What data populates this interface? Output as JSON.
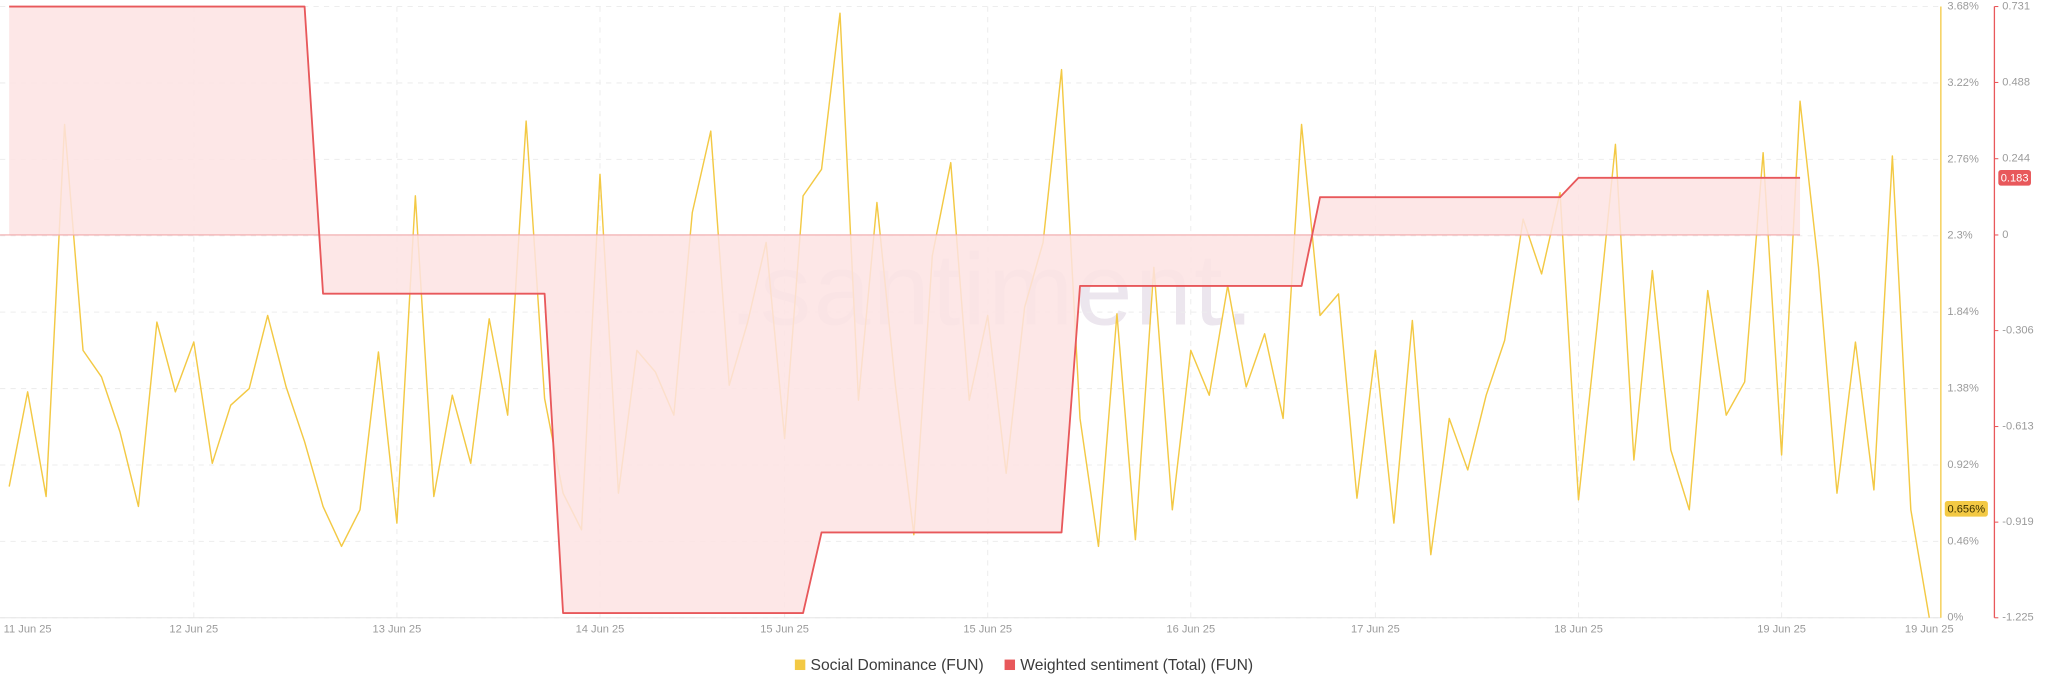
{
  "chart_data": {
    "type": "line",
    "watermark": ".santiment.",
    "categories": [
      null,
      "11 Jun 25",
      null,
      null,
      null,
      null,
      null,
      null,
      null,
      null,
      "12 Jun 25",
      null,
      null,
      null,
      null,
      null,
      null,
      null,
      null,
      null,
      null,
      "13 Jun 25",
      null,
      null,
      null,
      null,
      null,
      null,
      null,
      null,
      null,
      null,
      "14 Jun 25",
      null,
      null,
      null,
      null,
      null,
      null,
      null,
      null,
      null,
      "15 Jun 25",
      null,
      null,
      null,
      null,
      null,
      null,
      null,
      null,
      null,
      null,
      "15 Jun 25",
      null,
      null,
      null,
      null,
      null,
      null,
      null,
      null,
      null,
      null,
      "16 Jun 25",
      null,
      null,
      null,
      null,
      null,
      null,
      null,
      null,
      null,
      "17 Jun 25",
      null,
      null,
      null,
      null,
      null,
      null,
      null,
      null,
      null,
      null,
      "18 Jun 25",
      null,
      null,
      null,
      null,
      null,
      null,
      null,
      null,
      null,
      null,
      "19 Jun 25",
      null,
      null,
      null,
      null,
      null,
      null,
      null,
      "19 Jun 25"
    ],
    "series": [
      {
        "name": "Social Dominance (FUN)",
        "color": "#f3c944",
        "values": [
          0.79,
          1.36,
          0.73,
          2.97,
          1.61,
          1.45,
          1.12,
          0.67,
          1.78,
          1.36,
          1.66,
          0.93,
          1.28,
          1.38,
          1.82,
          1.39,
          1.06,
          0.67,
          0.43,
          0.65,
          1.6,
          0.57,
          2.54,
          0.73,
          1.34,
          0.93,
          1.8,
          1.22,
          2.99,
          1.32,
          0.75,
          0.53,
          2.67,
          0.75,
          1.61,
          1.48,
          1.22,
          2.44,
          2.93,
          1.4,
          1.78,
          2.26,
          1.08,
          2.54,
          2.7,
          3.64,
          1.31,
          2.5,
          1.4,
          0.5,
          2.18,
          2.74,
          1.31,
          1.82,
          0.87,
          1.87,
          2.26,
          3.3,
          1.2,
          0.43,
          1.83,
          0.47,
          2.11,
          0.65,
          1.61,
          1.34,
          2.0,
          1.39,
          1.71,
          1.2,
          2.97,
          1.82,
          1.95,
          0.72,
          1.61,
          0.57,
          1.79,
          0.38,
          1.2,
          0.89,
          1.34,
          1.67,
          2.4,
          2.07,
          2.56,
          0.71,
          1.75,
          2.85,
          0.95,
          2.09,
          1.01,
          0.65,
          1.97,
          1.22,
          1.42,
          2.8,
          0.98,
          3.11,
          2.11,
          0.75,
          1.66,
          0.77,
          2.78,
          0.65,
          0
        ],
        "badge": {
          "value": 0.656,
          "label": "0.656%"
        }
      },
      {
        "name": "Weighted sentiment (Total) (FUN)",
        "color": "#e8585b",
        "axis": "y2",
        "fill": "#fde3e3",
        "values": [
          0.731,
          0.731,
          0.731,
          0.731,
          0.731,
          0.731,
          0.731,
          0.731,
          0.731,
          0.731,
          0.731,
          0.731,
          0.731,
          0.731,
          0.731,
          0.731,
          0.731,
          -0.188,
          -0.188,
          -0.188,
          -0.188,
          -0.188,
          -0.188,
          -0.188,
          -0.188,
          -0.188,
          -0.188,
          -0.188,
          -0.188,
          -0.188,
          -1.21,
          -1.21,
          -1.21,
          -1.21,
          -1.21,
          -1.21,
          -1.21,
          -1.21,
          -1.21,
          -1.21,
          -1.21,
          -1.21,
          -1.21,
          -1.21,
          -0.952,
          -0.952,
          -0.952,
          -0.952,
          -0.952,
          -0.952,
          -0.952,
          -0.952,
          -0.952,
          -0.952,
          -0.952,
          -0.952,
          -0.952,
          -0.952,
          -0.163,
          -0.163,
          -0.163,
          -0.163,
          -0.163,
          -0.163,
          -0.163,
          -0.163,
          -0.163,
          -0.163,
          -0.163,
          -0.163,
          -0.163,
          0.121,
          0.121,
          0.121,
          0.121,
          0.121,
          0.121,
          0.121,
          0.121,
          0.121,
          0.121,
          0.121,
          0.121,
          0.121,
          0.121,
          0.183,
          0.183,
          0.183,
          0.183,
          0.183,
          0.183,
          0.183,
          0.183,
          0.183,
          0.183,
          0.183,
          0.183,
          0.183,
          null,
          null,
          null,
          null,
          null,
          null,
          null
        ],
        "badge": {
          "value": 0.183,
          "label": "0.183"
        }
      }
    ],
    "ylim": [
      0,
      3.68
    ],
    "yticks": [
      {
        "value": 0,
        "label": "0%"
      },
      {
        "value": 0.46,
        "label": "0.46%"
      },
      {
        "value": 0.92,
        "label": "0.92%"
      },
      {
        "value": 1.38,
        "label": "1.38%"
      },
      {
        "value": 1.84,
        "label": "1.84%"
      },
      {
        "value": 2.3,
        "label": "2.3%"
      },
      {
        "value": 2.76,
        "label": "2.76%"
      },
      {
        "value": 3.22,
        "label": "3.22%"
      },
      {
        "value": 3.68,
        "label": "3.68%"
      }
    ],
    "y2lim": [
      -1.225,
      0.731
    ],
    "y2ticks": [
      -1.225,
      -0.919,
      -0.613,
      -0.306,
      0,
      0.244,
      0.488,
      0.731
    ],
    "grid": true,
    "legend": "bottom"
  }
}
